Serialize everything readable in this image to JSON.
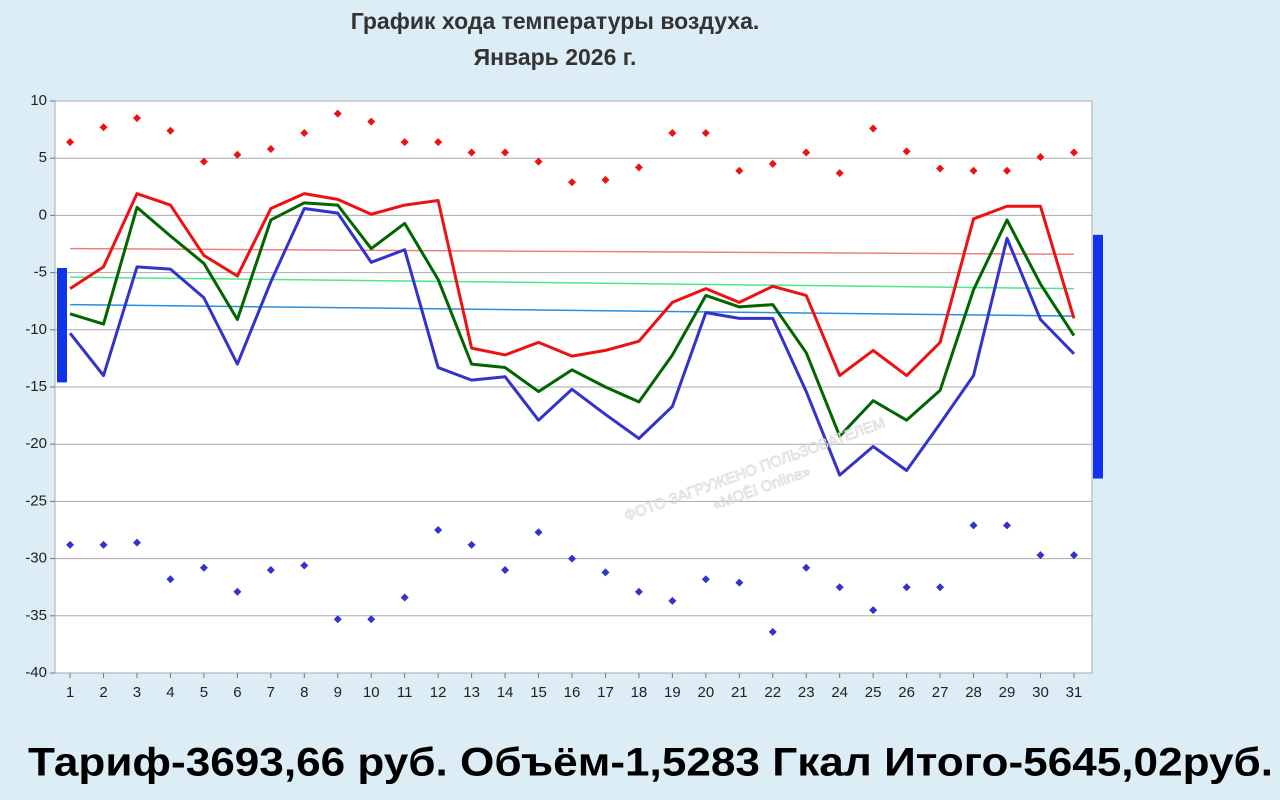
{
  "chart_data": {
    "type": "line",
    "title": "График хода температуры воздуха.",
    "subtitle": "Январь 2026 г.",
    "x": [
      1,
      2,
      3,
      4,
      5,
      6,
      7,
      8,
      9,
      10,
      11,
      12,
      13,
      14,
      15,
      16,
      17,
      18,
      19,
      20,
      21,
      22,
      23,
      24,
      25,
      26,
      27,
      28,
      29,
      30,
      31
    ],
    "xlim": [
      0.55,
      31.54
    ],
    "xticks": [
      1,
      2,
      3,
      4,
      5,
      6,
      7,
      8,
      9,
      10,
      11,
      12,
      13,
      14,
      15,
      16,
      17,
      18,
      19,
      20,
      21,
      22,
      23,
      24,
      25,
      26,
      27,
      28,
      29,
      30,
      31
    ],
    "ylim": [
      -40,
      10
    ],
    "yticks": [
      10,
      5,
      0,
      -5,
      -10,
      -15,
      -20,
      -25,
      -30,
      -35,
      -40
    ],
    "grid": true,
    "series": [
      {
        "style": "line",
        "color": "#f08080",
        "x": [
          1,
          31
        ],
        "values": [
          -2.9,
          -3.4
        ]
      },
      {
        "style": "line",
        "color": "#4de88a",
        "x": [
          1,
          31
        ],
        "values": [
          -5.4,
          -6.4
        ]
      },
      {
        "style": "line",
        "color": "#2a8ee0",
        "x": [
          1,
          31
        ],
        "values": [
          -7.8,
          -8.8
        ]
      },
      {
        "style": "markers",
        "color": "#ee1111",
        "values": [
          6.4,
          7.7,
          8.5,
          7.4,
          4.7,
          5.3,
          5.8,
          7.2,
          8.9,
          8.2,
          6.4,
          6.4,
          5.5,
          5.5,
          4.7,
          2.9,
          3.1,
          4.2,
          7.2,
          7.2,
          3.9,
          4.5,
          5.5,
          3.7,
          7.6,
          5.6,
          4.1,
          3.9,
          3.9,
          5.1,
          5.5
        ]
      },
      {
        "style": "markers",
        "color": "#3333cc",
        "values": [
          -28.8,
          -28.8,
          -28.6,
          -31.8,
          -30.8,
          -32.9,
          -31.0,
          -30.6,
          -35.3,
          -35.3,
          -33.4,
          -27.5,
          -28.8,
          -31.0,
          -27.7,
          -30.0,
          -31.2,
          -32.9,
          -33.7,
          -31.8,
          -32.1,
          -36.4,
          -30.8,
          -32.5,
          -34.5,
          -32.5,
          -32.5,
          -27.1,
          -27.1,
          -29.7,
          -29.7
        ]
      },
      {
        "style": "line",
        "color": "#ee1111",
        "values": [
          -6.4,
          -4.5,
          1.9,
          0.9,
          -3.5,
          -5.3,
          0.6,
          1.9,
          1.4,
          0.1,
          0.9,
          1.3,
          -11.6,
          -12.2,
          -11.1,
          -12.3,
          -11.8,
          -11.0,
          -7.6,
          -6.4,
          -7.6,
          -6.2,
          -7.0,
          -14.0,
          -11.8,
          -14.0,
          -11.1,
          -0.3,
          0.8,
          0.8,
          -9.0
        ]
      },
      {
        "style": "line",
        "color": "#006600",
        "values": [
          -8.6,
          -9.5,
          0.7,
          -1.8,
          -4.2,
          -9.1,
          -0.4,
          1.1,
          0.9,
          -2.9,
          -0.7,
          -5.6,
          -13.0,
          -13.3,
          -15.4,
          -13.5,
          -15.0,
          -16.3,
          -12.2,
          -7.0,
          -8.0,
          -7.8,
          -12.0,
          -19.3,
          -16.2,
          -17.9,
          -15.3,
          -6.5,
          -0.4,
          -6.0,
          -10.5
        ]
      },
      {
        "style": "line",
        "color": "#3333cc",
        "values": [
          -10.3,
          -14.0,
          -4.5,
          -4.7,
          -7.2,
          -13.0,
          -5.8,
          0.6,
          0.2,
          -4.1,
          -3.0,
          -13.3,
          -14.4,
          -14.1,
          -17.9,
          -15.2,
          -17.4,
          -19.5,
          -16.7,
          -8.5,
          -9.0,
          -9.0,
          -15.4,
          -22.7,
          -20.2,
          -22.3,
          -18.2,
          -14.0,
          -2.0,
          -9.1,
          -12.1
        ]
      }
    ],
    "range_bars": [
      {
        "side": "left",
        "color": "#1133ee",
        "values": [
          -4.6,
          -14.6
        ]
      },
      {
        "side": "right",
        "color": "#1133ee",
        "values": [
          -1.7,
          -23.0
        ]
      }
    ],
    "watermark": [
      "ФОТО ЗАГРУЖЕНО ПОЛЬЗОВАТЕЛЕМ",
      "«МОЁ! Online»"
    ],
    "footer": "Тариф-3693,66 руб. Объём-1,5283 Гкал Итого-5645,02руб."
  }
}
